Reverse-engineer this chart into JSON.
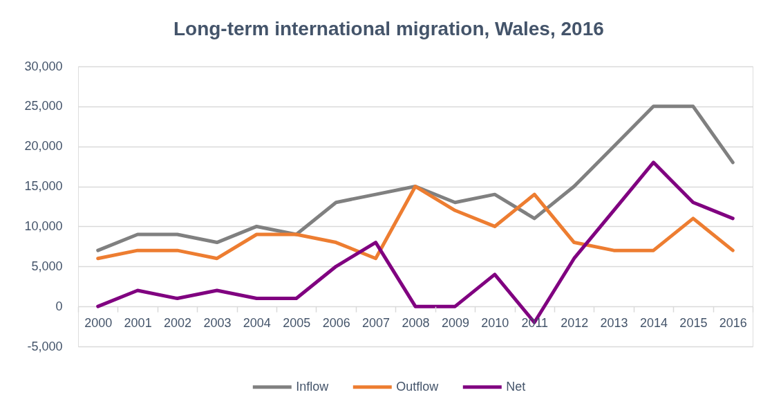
{
  "chart_data": {
    "type": "line",
    "title": "Long-term international migration, Wales, 2016",
    "categories": [
      "2000",
      "2001",
      "2002",
      "2003",
      "2004",
      "2005",
      "2006",
      "2007",
      "2008",
      "2009",
      "2010",
      "2011",
      "2012",
      "2013",
      "2014",
      "2015",
      "2016"
    ],
    "series": [
      {
        "name": "Inflow",
        "color": "#808080",
        "values": [
          7000,
          9000,
          9000,
          8000,
          10000,
          9000,
          13000,
          14000,
          15000,
          13000,
          14000,
          11000,
          15000,
          20000,
          25000,
          25000,
          18000
        ]
      },
      {
        "name": "Outflow",
        "color": "#ed7d31",
        "values": [
          6000,
          7000,
          7000,
          6000,
          9000,
          9000,
          8000,
          6000,
          15000,
          12000,
          10000,
          14000,
          8000,
          7000,
          7000,
          11000,
          7000
        ]
      },
      {
        "name": "Net",
        "color": "#800080",
        "values": [
          0,
          2000,
          1000,
          2000,
          1000,
          1000,
          5000,
          8000,
          0,
          0,
          4000,
          -2000,
          6000,
          12000,
          18000,
          13000,
          11000
        ]
      }
    ],
    "ylim": [
      -5000,
      30000
    ],
    "yticks": [
      {
        "value": -5000,
        "label": "-5,000"
      },
      {
        "value": 0,
        "label": "0"
      },
      {
        "value": 5000,
        "label": "5,000"
      },
      {
        "value": 10000,
        "label": "10,000"
      },
      {
        "value": 15000,
        "label": "15,000"
      },
      {
        "value": 20000,
        "label": "20,000"
      },
      {
        "value": 25000,
        "label": "25,000"
      },
      {
        "value": 30000,
        "label": "30,000"
      }
    ],
    "grid": "y",
    "legend": "bottom",
    "line_style": "solid"
  }
}
